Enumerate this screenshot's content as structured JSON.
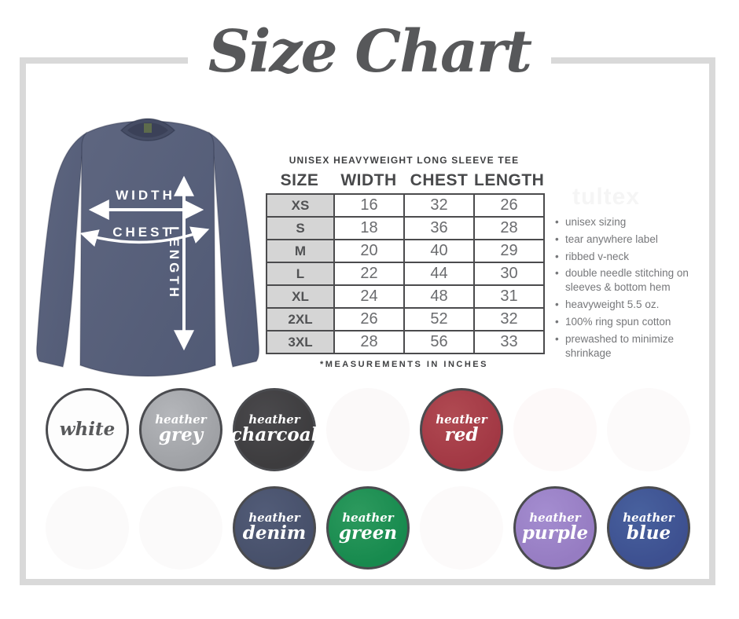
{
  "title": "Size Chart",
  "product": {
    "name": "UNISEX HEAVYWEIGHT LONG SLEEVE TEE",
    "footnote": "*MEASUREMENTS IN INCHES",
    "watermark": "tultex"
  },
  "diagram": {
    "width_label": "WIDTH",
    "chest_label": "CHEST",
    "length_label": "LENGTH",
    "shirt_color": "#59617b"
  },
  "size_table": {
    "columns": [
      "SIZE",
      "WIDTH",
      "CHEST",
      "LENGTH"
    ],
    "rows": [
      {
        "size": "XS",
        "width": "16",
        "chest": "32",
        "length": "26"
      },
      {
        "size": "S",
        "width": "18",
        "chest": "36",
        "length": "28"
      },
      {
        "size": "M",
        "width": "20",
        "chest": "40",
        "length": "29"
      },
      {
        "size": "L",
        "width": "22",
        "chest": "44",
        "length": "30"
      },
      {
        "size": "XL",
        "width": "24",
        "chest": "48",
        "length": "31"
      },
      {
        "size": "2XL",
        "width": "26",
        "chest": "52",
        "length": "32"
      },
      {
        "size": "3XL",
        "width": "28",
        "chest": "56",
        "length": "33"
      }
    ]
  },
  "features": [
    "unisex sizing",
    "tear anywhere label",
    "ribbed v-neck",
    "double needle stitching on sleeves & bottom hem",
    "heavyweight 5.5 oz.",
    "100% ring spun cotton",
    "prewashed to minimize shrinkage"
  ],
  "swatches": {
    "row1": [
      {
        "label": "white",
        "color": "#fdfdfd",
        "color2": "",
        "ring": true,
        "faded": false,
        "dark_text": true
      },
      {
        "label": "heather grey",
        "color": "#9fa1a5",
        "color2": "#b4b6ba",
        "ring": true,
        "faded": false,
        "dark_text": false
      },
      {
        "label": "heather charcoal",
        "color": "#3d3c3e",
        "color2": "#4a494c",
        "ring": true,
        "faded": false,
        "dark_text": false
      },
      {
        "label": "",
        "color": "#fbf9f9",
        "color2": "",
        "ring": false,
        "faded": true,
        "dark_text": false
      },
      {
        "label": "heather red",
        "color": "#a23844",
        "color2": "#b04a52",
        "ring": true,
        "faded": false,
        "dark_text": false
      },
      {
        "label": "",
        "color": "#fdf9f9",
        "color2": "",
        "ring": false,
        "faded": true,
        "dark_text": false
      },
      {
        "label": "",
        "color": "#fcfafa",
        "color2": "",
        "ring": false,
        "faded": true,
        "dark_text": false
      }
    ],
    "row2": [
      {
        "label": "",
        "color": "#fbfafa",
        "color2": "",
        "ring": false,
        "faded": true,
        "dark_text": false
      },
      {
        "label": "",
        "color": "#fbfafa",
        "color2": "",
        "ring": false,
        "faded": true,
        "dark_text": false
      },
      {
        "label": "heather denim",
        "color": "#47506a",
        "color2": "#525c78",
        "ring": true,
        "faded": false,
        "dark_text": false
      },
      {
        "label": "heather green",
        "color": "#178a4e",
        "color2": "#2d9a5e",
        "ring": true,
        "faded": false,
        "dark_text": false
      },
      {
        "label": "",
        "color": "#fcfafa",
        "color2": "",
        "ring": false,
        "faded": true,
        "dark_text": false
      },
      {
        "label": "heather purple",
        "color": "#967cc2",
        "color2": "#a48dd0",
        "ring": true,
        "faded": false,
        "dark_text": false
      },
      {
        "label": "heather blue",
        "color": "#3d5090",
        "color2": "#48619e",
        "ring": true,
        "faded": false,
        "dark_text": false
      }
    ]
  }
}
